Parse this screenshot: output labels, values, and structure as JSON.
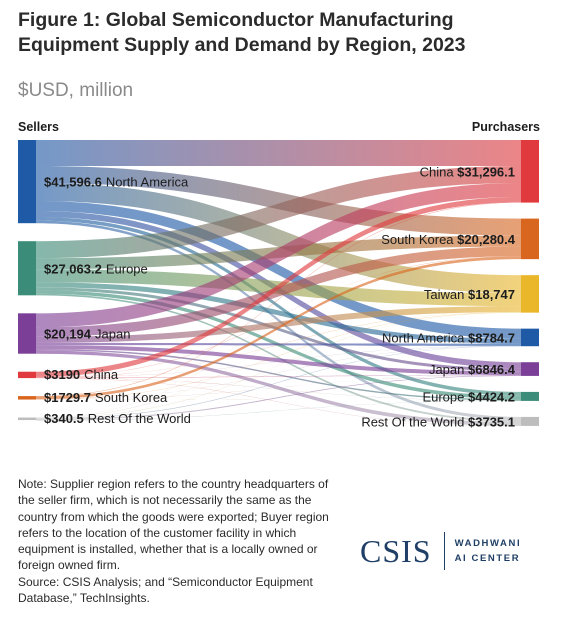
{
  "header": {
    "title": "Figure 1: Global Semiconductor Manufacturing Equipment Supply and Demand by Region, 2023",
    "subtitle": "$USD, million",
    "sellers_label": "Sellers",
    "purchasers_label": "Purchasers"
  },
  "chart_data": {
    "type": "sankey",
    "title": "Figure 1: Global Semiconductor Manufacturing Equipment Supply and Demand by Region, 2023",
    "units": "$USD, million",
    "sellers": [
      {
        "name": "North America",
        "value": 41596.6,
        "label": "$41,596.6",
        "color": "#1f5aa6"
      },
      {
        "name": "Europe",
        "value": 27063.2,
        "label": "$27,063.2",
        "color": "#3b8c78"
      },
      {
        "name": "Japan",
        "value": 20194,
        "label": "$20,194",
        "color": "#7b3f98"
      },
      {
        "name": "China",
        "value": 3190,
        "label": "$3190",
        "color": "#e03a3e"
      },
      {
        "name": "South Korea",
        "value": 1729.7,
        "label": "$1729.7",
        "color": "#d9661f"
      },
      {
        "name": "Rest Of the World",
        "value": 340.5,
        "label": "$340.5",
        "color": "#bdbdbd"
      }
    ],
    "purchasers": [
      {
        "name": "China",
        "value": 31296.1,
        "label": "$31,296.1",
        "color": "#e03a3e"
      },
      {
        "name": "South Korea",
        "value": 20280.4,
        "label": "$20,280.4",
        "color": "#d9661f"
      },
      {
        "name": "Taiwan",
        "value": 18747,
        "label": "$18,747",
        "color": "#eab72b"
      },
      {
        "name": "North America",
        "value": 8784.7,
        "label": "$8784.7",
        "color": "#1f5aa6"
      },
      {
        "name": "Japan",
        "value": 6846.4,
        "label": "$6846.4",
        "color": "#7b3f98"
      },
      {
        "name": "Europe",
        "value": 4424.2,
        "label": "$4424.2",
        "color": "#3b8c78"
      },
      {
        "name": "Rest Of the World",
        "value": 3735.1,
        "label": "$3735.1",
        "color": "#bdbdbd"
      }
    ],
    "flows": [
      [
        "North America",
        "China",
        13000
      ],
      [
        "North America",
        "South Korea",
        8500
      ],
      [
        "North America",
        "Taiwan",
        9000
      ],
      [
        "North America",
        "North America",
        5000
      ],
      [
        "North America",
        "Japan",
        3000
      ],
      [
        "North America",
        "Europe",
        1800
      ],
      [
        "North America",
        "Rest Of the World",
        1296.6
      ],
      [
        "Europe",
        "China",
        8500
      ],
      [
        "Europe",
        "South Korea",
        5500
      ],
      [
        "Europe",
        "Taiwan",
        6500
      ],
      [
        "Europe",
        "North America",
        2500
      ],
      [
        "Europe",
        "Japan",
        1500
      ],
      [
        "Europe",
        "Europe",
        1763.2
      ],
      [
        "Europe",
        "Rest Of the World",
        800
      ],
      [
        "Japan",
        "China",
        7000
      ],
      [
        "Japan",
        "South Korea",
        4800
      ],
      [
        "Japan",
        "Taiwan",
        3000
      ],
      [
        "Japan",
        "North America",
        1100
      ],
      [
        "Japan",
        "Japan",
        2000
      ],
      [
        "Japan",
        "Europe",
        700
      ],
      [
        "Japan",
        "Rest Of the World",
        1594
      ],
      [
        "China",
        "China",
        2600
      ],
      [
        "China",
        "South Korea",
        100
      ],
      [
        "China",
        "Taiwan",
        100
      ],
      [
        "China",
        "North America",
        50
      ],
      [
        "China",
        "Japan",
        150
      ],
      [
        "China",
        "Europe",
        90
      ],
      [
        "China",
        "Rest Of the World",
        100
      ],
      [
        "South Korea",
        "China",
        180
      ],
      [
        "South Korea",
        "South Korea",
        1350
      ],
      [
        "South Korea",
        "Taiwan",
        100
      ],
      [
        "South Korea",
        "North America",
        50
      ],
      [
        "South Korea",
        "Japan",
        20
      ],
      [
        "South Korea",
        "Europe",
        10
      ],
      [
        "South Korea",
        "Rest Of the World",
        19.7
      ],
      [
        "Rest Of the World",
        "China",
        16.1
      ],
      [
        "Rest Of the World",
        "South Korea",
        30.4
      ],
      [
        "Rest Of the World",
        "Taiwan",
        47
      ],
      [
        "Rest Of the World",
        "North America",
        84.7
      ],
      [
        "Rest Of the World",
        "Japan",
        176.4
      ],
      [
        "Rest Of the World",
        "Europe",
        61
      ],
      [
        "Rest Of the World",
        "Rest Of the World",
        -75.1
      ]
    ]
  },
  "notes": {
    "note": "Note: Supplier region refers to the country headquarters of the seller firm, which is not necessarily the same as the country from which the goods were exported; Buyer region refers to the location of the customer facility in which equipment is installed, whether that is a locally owned or foreign owned firm.",
    "source": "Source: CSIS Analysis; and “Semiconductor Equipment Database,” TechInsights."
  },
  "logo": {
    "main": "CSIS",
    "line1": "WADHWANI",
    "line2": "AI CENTER"
  }
}
